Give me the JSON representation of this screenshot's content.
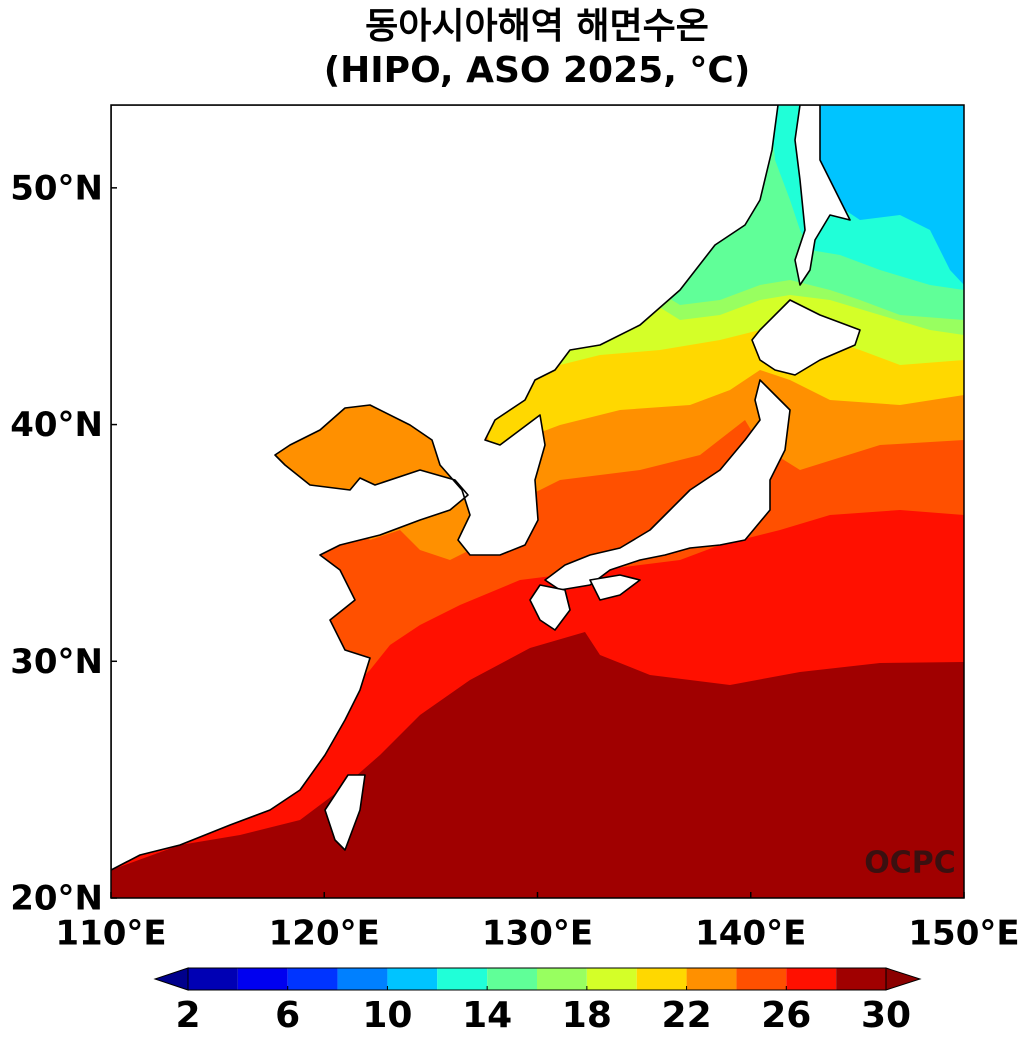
{
  "chart_data": {
    "type": "map",
    "title": "동아시아해역 해면수온",
    "subtitle": "(HIPO, ASO 2025, °C)",
    "xlim": [
      110,
      150
    ],
    "ylim": [
      20,
      53.5
    ],
    "xticks": [
      {
        "value": 110,
        "label": "110°E"
      },
      {
        "value": 120,
        "label": "120°E"
      },
      {
        "value": 130,
        "label": "130°E"
      },
      {
        "value": 140,
        "label": "140°E"
      },
      {
        "value": 150,
        "label": "150°E"
      }
    ],
    "yticks": [
      {
        "value": 20,
        "label": "20°N"
      },
      {
        "value": 30,
        "label": "30°N"
      },
      {
        "value": 40,
        "label": "40°N"
      },
      {
        "value": 50,
        "label": "50°N"
      }
    ],
    "colorbar": {
      "levels": [
        2,
        4,
        6,
        8,
        10,
        12,
        14,
        16,
        18,
        20,
        22,
        24,
        26,
        28,
        30
      ],
      "colors": [
        "#0000b4",
        "#0000f0",
        "#0034ff",
        "#0080ff",
        "#00c4ff",
        "#20ffd8",
        "#60ff98",
        "#98ff60",
        "#d4ff28",
        "#ffd800",
        "#ff9000",
        "#ff5000",
        "#ff1000",
        "#a00000"
      ],
      "extend_colors": [
        "#00008c",
        "#8b0000"
      ],
      "ticks": [
        2,
        6,
        10,
        14,
        18,
        22,
        26,
        30
      ]
    },
    "watermark": "OCPC"
  }
}
